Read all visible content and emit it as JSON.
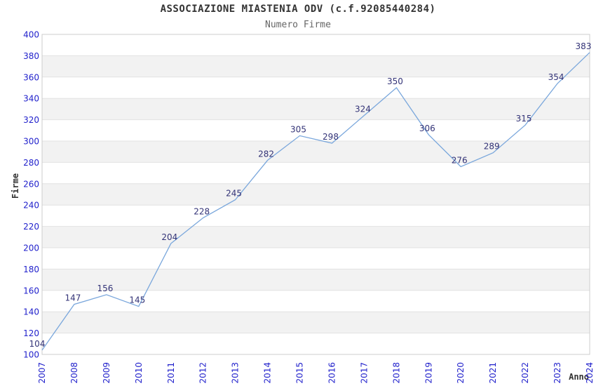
{
  "chart_data": {
    "type": "line",
    "title": "ASSOCIAZIONE MIASTENIA ODV (c.f.92085440284)",
    "subtitle": "Numero Firme",
    "xlabel": "Anno",
    "ylabel": "Firme",
    "x": [
      "2007",
      "2008",
      "2009",
      "2010",
      "2011",
      "2012",
      "2013",
      "2014",
      "2015",
      "2016",
      "2017",
      "2018",
      "2019",
      "2020",
      "2021",
      "2022",
      "2023",
      "2024"
    ],
    "values": [
      104,
      147,
      156,
      145,
      204,
      228,
      245,
      282,
      305,
      298,
      324,
      350,
      306,
      276,
      289,
      315,
      354,
      383
    ],
    "ylim": [
      100,
      400
    ],
    "ytick_step": 20,
    "yticks": [
      100,
      120,
      140,
      160,
      180,
      200,
      220,
      240,
      260,
      280,
      300,
      320,
      340,
      360,
      380,
      400
    ],
    "grid": "horizontal-bands-alternating",
    "legend": "none",
    "point_markers": "none",
    "data_labels_shown": true,
    "colors": {
      "line": "#7aa7dc",
      "tick_labels": "#2222cc",
      "value_labels": "#333377",
      "band": "#f2f2f2",
      "gridline": "#e2e2e2",
      "plot_border": "#cccccc",
      "axis_titles": "#333333",
      "title": "#333333",
      "subtitle": "#666666",
      "background": "#ffffff"
    }
  }
}
